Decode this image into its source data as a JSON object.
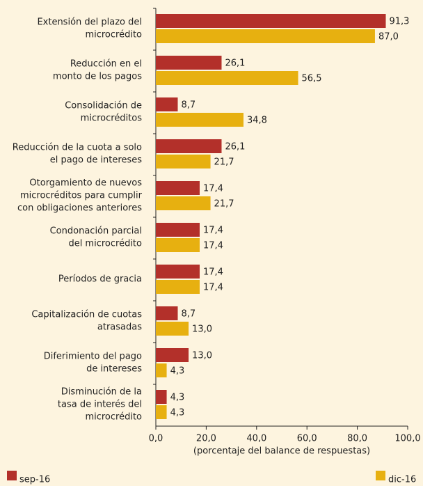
{
  "chart_data": {
    "type": "hbar",
    "categories": [
      [
        "Extensión del plazo del",
        "microcrédito"
      ],
      [
        "Reducción en el",
        "monto de los pagos"
      ],
      [
        "Consolidación de",
        "microcréditos"
      ],
      [
        "Reducción de la cuota a solo",
        "el pago de intereses"
      ],
      [
        "Otorgamiento de nuevos",
        "microcréditos para cumplir",
        "con obligaciones anteriores"
      ],
      [
        "Condonación parcial",
        "del microcrédito"
      ],
      [
        "Períodos de gracia"
      ],
      [
        "Capitalización de cuotas",
        "atrasadas"
      ],
      [
        "Diferimiento del pago",
        "de intereses"
      ],
      [
        "Disminución de la",
        "tasa de interés del",
        "microcrédito"
      ]
    ],
    "series": [
      {
        "name": "sep-16",
        "color": "#b3302a",
        "values": [
          91.3,
          26.1,
          8.7,
          26.1,
          17.4,
          17.4,
          17.4,
          8.7,
          13.0,
          4.3
        ],
        "value_labels": [
          "91,3",
          "26,1",
          "8,7",
          "26,1",
          "17,4",
          "17,4",
          "17,4",
          "8,7",
          "13,0",
          "4,3"
        ]
      },
      {
        "name": "dic-16",
        "color": "#e7b010",
        "values": [
          87.0,
          56.5,
          34.8,
          21.7,
          21.7,
          17.4,
          17.4,
          13.0,
          4.3,
          4.3
        ],
        "value_labels": [
          "87,0",
          "56,5",
          "34,8",
          "21,7",
          "21,7",
          "17,4",
          "17,4",
          "13,0",
          "4,3",
          "4,3"
        ]
      }
    ],
    "xlabel": "(porcentaje del balance de respuestas)",
    "xlim": [
      0,
      100
    ],
    "xticks": [
      {
        "value": 0,
        "label": "0,0"
      },
      {
        "value": 20,
        "label": "20,0"
      },
      {
        "value": 40,
        "label": "40,0"
      },
      {
        "value": 60,
        "label": "60,0"
      },
      {
        "value": 80,
        "label": "80,0"
      },
      {
        "value": 100,
        "label": "100,0"
      }
    ]
  }
}
